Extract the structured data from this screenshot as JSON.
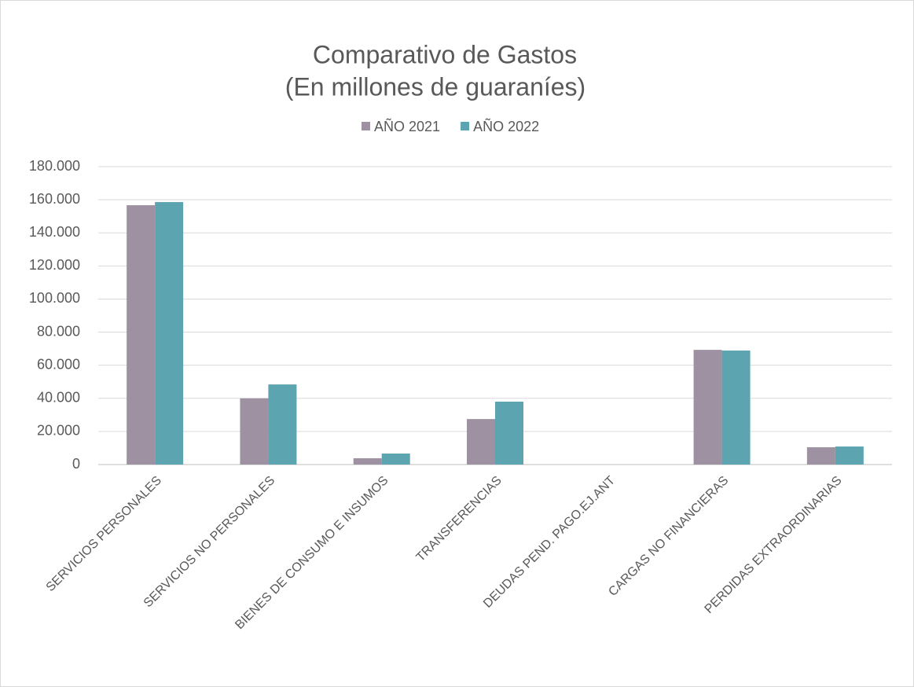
{
  "chart_data": {
    "type": "bar",
    "title": "Comparativo de Gastos",
    "subtitle": "(En millones de guaraníes)",
    "categories": [
      "SERVICIOS PERSONALES",
      "SERVICIOS NO PERSONALES",
      "BIENES DE CONSUMO E INSUMOS",
      "TRANSFERENCIAS",
      "DEUDAS PEND. PAGO.EJ.ANT",
      "CARGAS NO FINANCIERAS",
      "PERDIDAS EXTRAORDINARIAS"
    ],
    "series": [
      {
        "name": "AÑO 2021",
        "color": "#9e91a2",
        "values": [
          156700,
          40000,
          3800,
          27500,
          0,
          69300,
          10450
        ]
      },
      {
        "name": "AÑO 2022",
        "color": "#5ca5b0",
        "values": [
          158600,
          48400,
          6650,
          38000,
          0,
          68900,
          10900
        ]
      }
    ],
    "ylim": [
      0,
      180000
    ],
    "yticks": [
      0,
      {
        "value": 20000,
        "label": "20.000"
      },
      {
        "value": 40000,
        "label": "40.000"
      },
      {
        "value": 60000,
        "label": "60.000"
      },
      {
        "value": 80000,
        "label": "80.000"
      },
      {
        "value": 100000,
        "label": "100.000"
      },
      {
        "value": 120000,
        "label": "120.000"
      },
      {
        "value": 140000,
        "label": "140.000"
      },
      {
        "value": 160000,
        "label": "160.000"
      },
      {
        "value": 180000,
        "label": "180.000"
      }
    ],
    "grid": true,
    "legend": "top"
  }
}
